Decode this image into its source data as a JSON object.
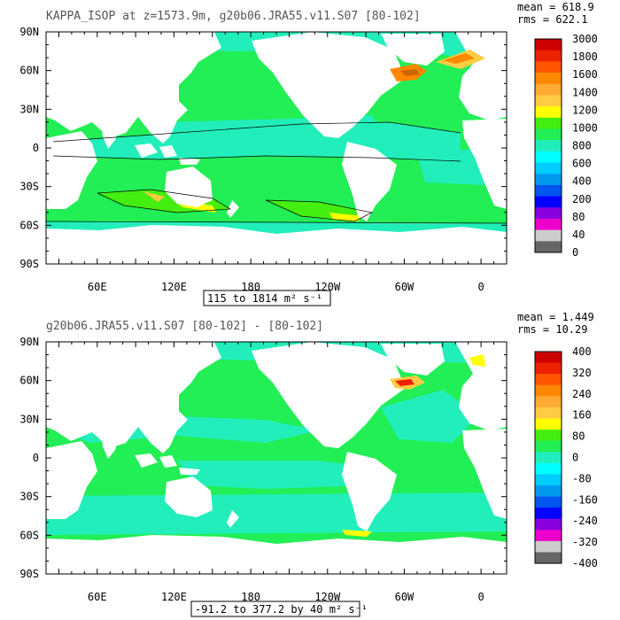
{
  "colors": {
    "land": "#ffffff",
    "frame": "#000000",
    "title_text": "#555555"
  },
  "panels": [
    {
      "id": "top",
      "title": "KAPPA_ISOP at z=1573.9m, g20b06.JRA55.v11.S07 [80-102]",
      "stats": {
        "mean_text": "mean = 618.9",
        "rms_text": "rms = 622.1"
      },
      "range_text": "115 to 1814 m² s⁻¹",
      "base_color": "#22ee55",
      "colorbar": {
        "labels": [
          "3000",
          "1800",
          "1600",
          "1400",
          "1200",
          "1000",
          "800",
          "600",
          "400",
          "200",
          "80",
          "40",
          "0"
        ],
        "colors": [
          "#cc0000",
          "#ee2200",
          "#ff5500",
          "#ff8800",
          "#ffaa33",
          "#ffcc44",
          "#ffff00",
          "#44ee11",
          "#22ee55",
          "#22eebb",
          "#00ffff",
          "#00ccff",
          "#0099ee",
          "#0055ee",
          "#0000ff",
          "#8800dd",
          "#ee00cc",
          "#cccccc",
          "#666666"
        ]
      }
    },
    {
      "id": "bottom",
      "title": "g20b06.JRA55.v11.S07 [80-102] - [80-102]",
      "stats": {
        "mean_text": "mean = 1.449",
        "rms_text": "rms = 10.29"
      },
      "range_text": "-91.2 to 377.2 by 40 m² s⁻¹",
      "base_color": "#22ee55",
      "colorbar": {
        "labels": [
          "400",
          "320",
          "240",
          "160",
          "80",
          "0",
          "-80",
          "-160",
          "-240",
          "-320",
          "-400"
        ],
        "colors": [
          "#cc0000",
          "#ee2200",
          "#ff5500",
          "#ff8800",
          "#ffaa33",
          "#ffcc44",
          "#ffff00",
          "#44ee11",
          "#22ee55",
          "#22eebb",
          "#00ffff",
          "#00ccff",
          "#0099ee",
          "#0055ee",
          "#0000ff",
          "#8800dd",
          "#ee00cc",
          "#cccccc",
          "#666666"
        ]
      }
    }
  ],
  "chart_data": [
    {
      "type": "heatmap",
      "title": "KAPPA_ISOP at z=1573.9m, g20b06.JRA55.v11.S07 [80-102]",
      "x_tick_labels": [
        "60E",
        "120E",
        "180",
        "120W",
        "60W",
        "0"
      ],
      "y_tick_labels": [
        "90N",
        "60N",
        "30N",
        "0",
        "30S",
        "60S",
        "90S"
      ],
      "xlim": [
        20,
        380
      ],
      "ylim": [
        -90,
        90
      ],
      "contour_levels": [
        0,
        40,
        80,
        200,
        400,
        600,
        800,
        1000,
        1200,
        1400,
        1600,
        1800,
        3000
      ],
      "mean": 618.9,
      "rms": 622.1,
      "value_range": [
        115,
        1814
      ],
      "units": "m² s⁻¹"
    },
    {
      "type": "heatmap",
      "title": "g20b06.JRA55.v11.S07 [80-102] - [80-102]",
      "x_tick_labels": [
        "60E",
        "120E",
        "180",
        "120W",
        "60W",
        "0"
      ],
      "y_tick_labels": [
        "90N",
        "60N",
        "30N",
        "0",
        "30S",
        "60S",
        "90S"
      ],
      "xlim": [
        20,
        380
      ],
      "ylim": [
        -90,
        90
      ],
      "contour_levels": [
        -400,
        -320,
        -240,
        -160,
        -80,
        0,
        80,
        160,
        240,
        320,
        400
      ],
      "mean": 1.449,
      "rms": 10.29,
      "value_range": [
        -91.2,
        377.2
      ],
      "contour_interval": 40,
      "units": "m² s⁻¹"
    }
  ]
}
